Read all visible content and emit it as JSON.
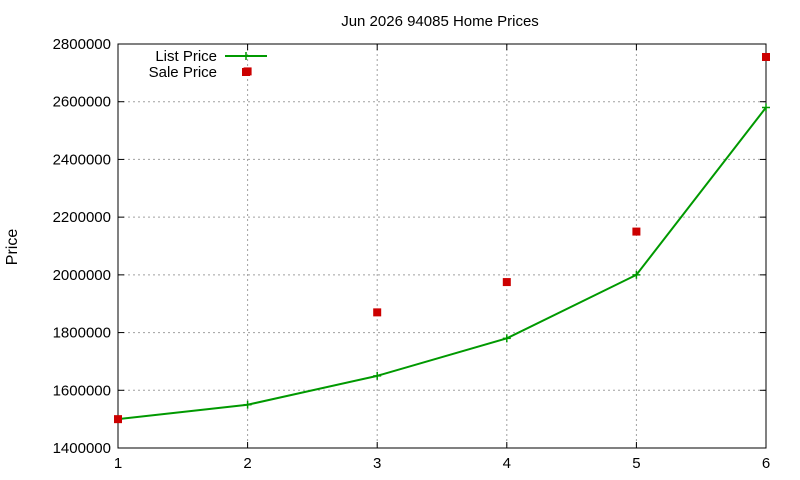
{
  "chart_data": {
    "type": "line",
    "title": "Jun 2026 94085 Home Prices",
    "xlabel": "",
    "ylabel": "Price",
    "x": [
      1,
      2,
      3,
      4,
      5,
      6
    ],
    "xlim": [
      1,
      6
    ],
    "ylim": [
      1400000,
      2800000
    ],
    "xticks": [
      "1",
      "2",
      "3",
      "4",
      "5",
      "6"
    ],
    "yticks": [
      "1400000",
      "1600000",
      "1800000",
      "2000000",
      "2200000",
      "2400000",
      "2600000",
      "2800000"
    ],
    "grid": true,
    "legend_position": "top-left",
    "series": [
      {
        "name": "List Price",
        "kind": "line-points",
        "color": "#009900",
        "values": [
          1500000,
          1550000,
          1650000,
          1780000,
          2000000,
          2580000
        ]
      },
      {
        "name": "Sale Price",
        "kind": "points",
        "color": "#cc0000",
        "values": [
          1500000,
          2705000,
          1870000,
          1975000,
          2150000,
          2755000
        ]
      }
    ]
  }
}
